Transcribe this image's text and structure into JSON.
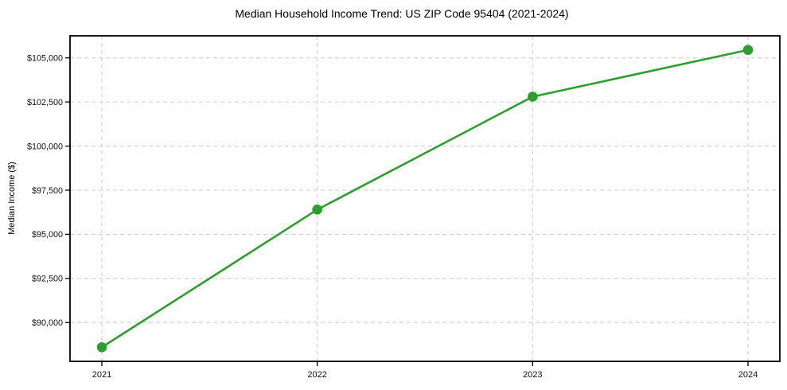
{
  "chart_data": {
    "type": "line",
    "title": "Median Household Income Trend: US ZIP Code 95404 (2021-2024)",
    "xlabel": "",
    "ylabel": "Median Income ($)",
    "categories": [
      "2021",
      "2022",
      "2023",
      "2024"
    ],
    "series": [
      {
        "name": "Median household income",
        "values": [
          88600,
          96400,
          102800,
          105450
        ]
      }
    ],
    "yticks": [
      {
        "value": 90000,
        "label": "$90,000"
      },
      {
        "value": 92500,
        "label": "$92,500"
      },
      {
        "value": 95000,
        "label": "$95,000"
      },
      {
        "value": 97500,
        "label": "$97,500"
      },
      {
        "value": 100000,
        "label": "$100,000"
      },
      {
        "value": 102500,
        "label": "$102,500"
      },
      {
        "value": 105000,
        "label": "$105,000"
      }
    ],
    "ylim": [
      87800,
      106250
    ],
    "grid": true,
    "grid_style": "dashed",
    "legend": "none",
    "colors": {
      "line": "#2ca02c",
      "marker": "#2ca02c",
      "grid": "#d0d0d0",
      "spine": "#000000",
      "background": "#ffffff",
      "text": "#000000"
    }
  }
}
